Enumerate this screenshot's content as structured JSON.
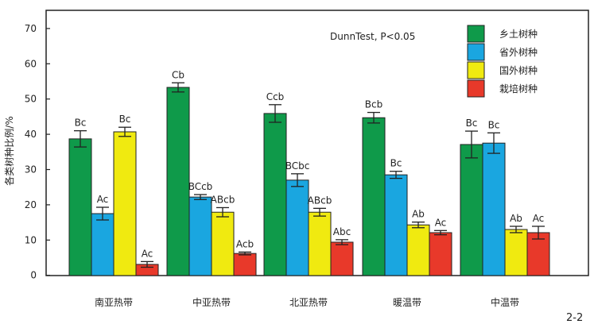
{
  "chart_data": {
    "type": "bar",
    "title": "",
    "annotation": "DunnTest, P<0.05",
    "xlabel": "",
    "ylabel": "各类树种比例/%",
    "ylim": [
      0,
      70
    ],
    "yticks": [
      0,
      10,
      20,
      30,
      40,
      50,
      60,
      70
    ],
    "categories": [
      "南亚热带",
      "中亚热带",
      "北亚热带",
      "暖温带",
      "中温带"
    ],
    "series": [
      {
        "name": "乡土树种",
        "color": "#0f9a4a",
        "values": [
          38.7,
          53.3,
          45.9,
          44.7,
          37.1
        ],
        "errors": [
          2.3,
          1.3,
          2.5,
          1.5,
          3.8
        ],
        "labels": [
          "Bc",
          "Cb",
          "Ccb",
          "Bcb",
          "Bc"
        ]
      },
      {
        "name": "省外树种",
        "color": "#1aa6e0",
        "values": [
          17.5,
          22.2,
          27.0,
          28.5,
          37.5
        ],
        "errors": [
          1.8,
          0.7,
          1.8,
          1.0,
          2.9
        ],
        "labels": [
          "Ac",
          "BCcb",
          "BCbc",
          "Bc",
          "Bc"
        ]
      },
      {
        "name": "国外树种",
        "color": "#f0ea10",
        "values": [
          40.7,
          17.9,
          17.9,
          14.3,
          13.0
        ],
        "errors": [
          1.3,
          1.3,
          1.1,
          0.8,
          0.9
        ],
        "labels": [
          "Bc",
          "ABcb",
          "ABcb",
          "Ab",
          "Ab"
        ]
      },
      {
        "name": "栽培树种",
        "color": "#e8392a",
        "values": [
          3.1,
          6.2,
          9.4,
          12.1,
          12.1
        ],
        "errors": [
          0.8,
          0.4,
          0.7,
          0.6,
          1.8
        ],
        "labels": [
          "Ac",
          "Acb",
          "Abc",
          "Ac",
          "Ac"
        ]
      }
    ],
    "legend_position": "upper right",
    "grid": false,
    "figure_label": "2-2"
  }
}
